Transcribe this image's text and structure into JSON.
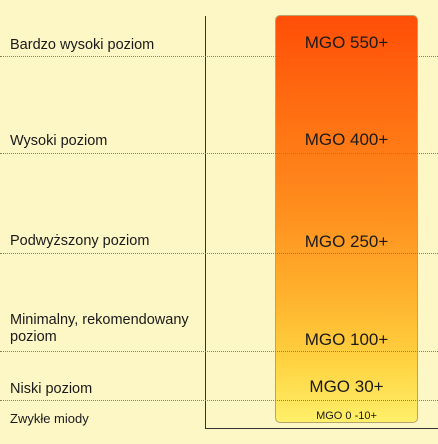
{
  "levels": [
    {
      "label": "Bardzo wysoki poziom",
      "value": "MGO 550+"
    },
    {
      "label": "Wysoki poziom",
      "value": "MGO 400+"
    },
    {
      "label": "Podwyższony poziom",
      "value": "MGO 250+"
    },
    {
      "label": "Minimalny, rekomendowany poziom",
      "value": "MGO 100+"
    },
    {
      "label": "Niski poziom",
      "value": "MGO 30+"
    },
    {
      "label": "Zwykłe miody",
      "value": "MGO 0 -10+"
    }
  ],
  "colors": {
    "background": "#fdf7c6",
    "bar_top": "#ff4e08",
    "bar_bottom": "#fff06a"
  }
}
